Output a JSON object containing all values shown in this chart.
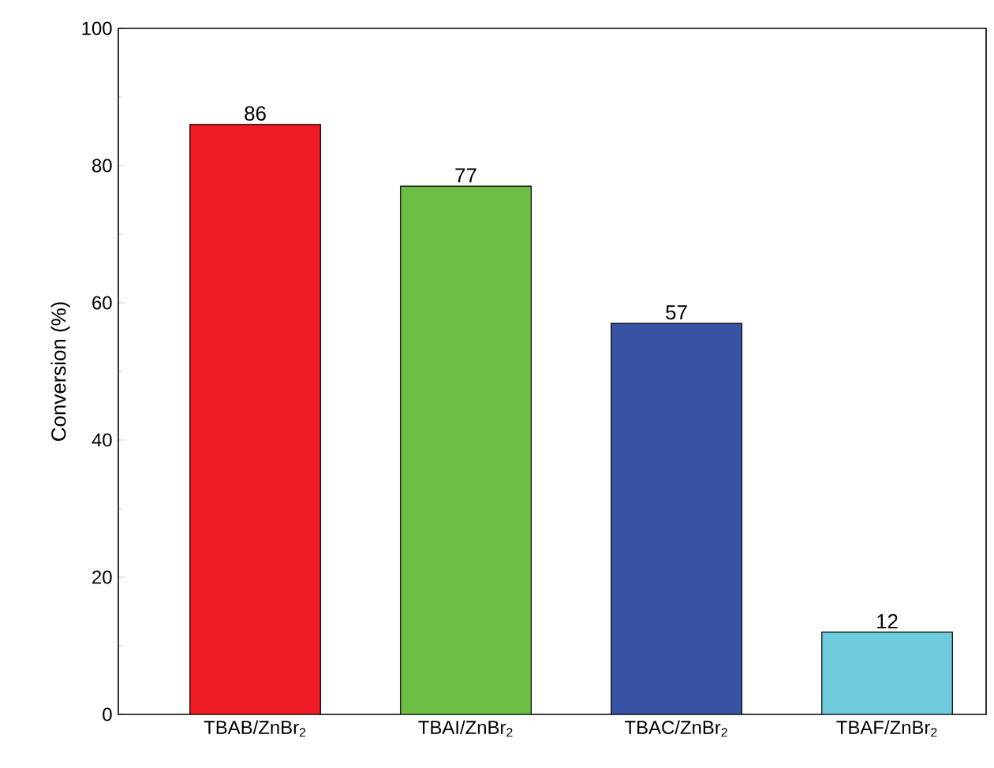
{
  "chart_data": {
    "type": "bar",
    "ylabel": "Conversion (%)",
    "categories": [
      "TBAB/ZnBr$_{2}$",
      "TBAI/ZnBr$_{2}$",
      "TBAC/ZnBr$_{2}$",
      "TBAF/ZnBr$_{2}$"
    ],
    "values": [
      86,
      77,
      57,
      12
    ],
    "colors": [
      "#ed1c24",
      "#6dbe45",
      "#3953a4",
      "#6dcbdb"
    ],
    "ylim": [
      0,
      100
    ],
    "yticks": [
      0,
      20,
      40,
      60,
      80,
      100
    ],
    "data_labels": true
  }
}
